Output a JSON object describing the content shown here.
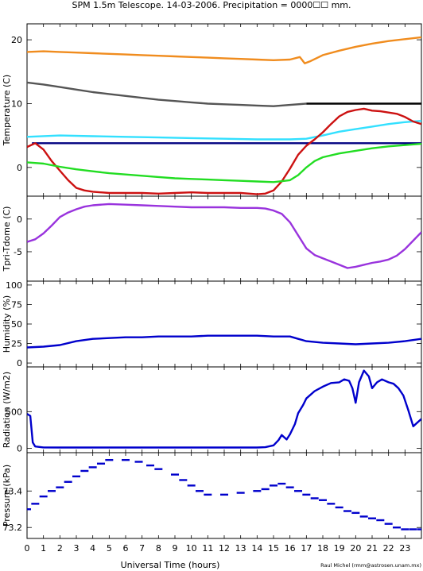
{
  "title": "SPM 1.5m Telescope. 14-03-2006. Precipitation = 0000☐☐ mm.",
  "credit": "Raul Michel (rmm@astrosen.unam.mx)",
  "xaxis": {
    "label": "Universal Time (hours)",
    "range": [
      0,
      24
    ],
    "ticks": [
      "0",
      "1",
      "2",
      "3",
      "4",
      "5",
      "6",
      "7",
      "8",
      "9",
      "10",
      "11",
      "12",
      "13",
      "14",
      "15",
      "16",
      "17",
      "18",
      "19",
      "20",
      "21",
      "22",
      "23"
    ]
  },
  "colors": {
    "orange": "#f08c1e",
    "gray": "#555555",
    "cyan": "#33e0ff",
    "navy": "#000080",
    "black": "#000000",
    "red": "#cc1111",
    "green": "#22dd22",
    "purple": "#9933dd",
    "blue": "#0000cc"
  },
  "chart_data": [
    {
      "type": "line",
      "ylabel": "Temperature (C)",
      "ylim": [
        -4.5,
        22.5
      ],
      "yticks": [
        "20",
        "10",
        "0"
      ],
      "series": [
        {
          "color_key": "orange",
          "x": [
            0,
            1,
            2,
            3,
            4,
            5,
            6,
            7,
            8,
            9,
            10,
            11,
            12,
            13,
            14,
            15,
            16,
            16.6,
            16.9,
            17.2,
            18,
            19,
            20,
            21,
            22,
            23,
            24
          ],
          "y": [
            18.1,
            18.2,
            18.1,
            18.0,
            17.9,
            17.8,
            17.7,
            17.6,
            17.5,
            17.4,
            17.3,
            17.2,
            17.1,
            17.0,
            16.9,
            16.8,
            16.9,
            17.3,
            16.3,
            16.6,
            17.6,
            18.3,
            18.9,
            19.4,
            19.8,
            20.1,
            20.4
          ]
        },
        {
          "color_key": "gray",
          "x": [
            0,
            1,
            2,
            3,
            4,
            5,
            6,
            7,
            8,
            9,
            10,
            11,
            12,
            13,
            14,
            15,
            16,
            17
          ],
          "y": [
            13.3,
            13.0,
            12.6,
            12.2,
            11.8,
            11.5,
            11.2,
            10.9,
            10.6,
            10.4,
            10.2,
            10.0,
            9.9,
            9.8,
            9.7,
            9.6,
            9.8,
            10.0
          ]
        },
        {
          "color_key": "black",
          "x": [
            17,
            24
          ],
          "y": [
            10.0,
            10.0
          ]
        },
        {
          "color_key": "cyan",
          "x": [
            0,
            2,
            4,
            6,
            8,
            10,
            12,
            14,
            16,
            17,
            18,
            19,
            20,
            21,
            22,
            23,
            24
          ],
          "y": [
            4.8,
            5.0,
            4.9,
            4.8,
            4.7,
            4.6,
            4.5,
            4.4,
            4.4,
            4.5,
            5.0,
            5.6,
            6.0,
            6.4,
            6.8,
            7.1,
            7.3
          ]
        },
        {
          "color_key": "navy",
          "x": [
            0.3,
            24
          ],
          "y": [
            3.8,
            3.8
          ]
        },
        {
          "color_key": "red",
          "x": [
            0,
            0.5,
            1,
            1.5,
            2,
            2.5,
            3,
            3.5,
            4,
            5,
            6,
            7,
            8,
            9,
            10,
            11,
            12,
            13,
            14,
            14.5,
            15,
            15.5,
            16,
            16.5,
            17,
            17.5,
            18,
            18.5,
            19,
            19.5,
            20,
            20.5,
            21,
            21.5,
            22,
            22.5,
            23,
            23.5,
            24
          ],
          "y": [
            3.2,
            3.8,
            2.8,
            1.0,
            -0.5,
            -2.0,
            -3.2,
            -3.6,
            -3.8,
            -4.0,
            -4.0,
            -4.0,
            -4.1,
            -4.0,
            -3.9,
            -4.0,
            -4.0,
            -4.0,
            -4.2,
            -4.1,
            -3.6,
            -2.2,
            -0.2,
            2.0,
            3.4,
            4.4,
            5.5,
            6.8,
            8.0,
            8.7,
            9.0,
            9.2,
            8.9,
            8.8,
            8.6,
            8.4,
            7.9,
            7.2,
            6.8
          ]
        },
        {
          "color_key": "green",
          "x": [
            0,
            1,
            2,
            3,
            4,
            5,
            6,
            7,
            8,
            9,
            10,
            11,
            12,
            13,
            14,
            15,
            16,
            16.5,
            17,
            17.5,
            18,
            19,
            20,
            21,
            22,
            23,
            24
          ],
          "y": [
            0.8,
            0.6,
            0.1,
            -0.3,
            -0.6,
            -0.9,
            -1.1,
            -1.3,
            -1.5,
            -1.7,
            -1.8,
            -1.9,
            -2.0,
            -2.1,
            -2.2,
            -2.3,
            -2.0,
            -1.2,
            0.0,
            1.0,
            1.6,
            2.2,
            2.6,
            3.0,
            3.3,
            3.5,
            3.7
          ]
        }
      ]
    },
    {
      "type": "line",
      "ylabel": "Tpri-Tdome (C)",
      "ylim": [
        -9.5,
        3.5
      ],
      "yticks": [
        "0",
        "-5"
      ],
      "series": [
        {
          "color_key": "purple",
          "x": [
            0,
            0.5,
            1,
            1.5,
            2,
            2.5,
            3,
            3.5,
            4,
            5,
            6,
            7,
            8,
            9,
            10,
            11,
            12,
            13,
            14,
            14.5,
            15,
            15.5,
            16,
            16.5,
            17,
            17.5,
            18,
            18.5,
            19,
            19.5,
            20,
            20.5,
            21,
            21.5,
            22,
            22.5,
            23,
            23.5,
            24
          ],
          "y": [
            -3.5,
            -3.1,
            -2.2,
            -1.0,
            0.3,
            1.0,
            1.5,
            1.9,
            2.1,
            2.3,
            2.2,
            2.1,
            2.0,
            1.9,
            1.8,
            1.8,
            1.8,
            1.7,
            1.7,
            1.6,
            1.3,
            0.8,
            -0.5,
            -2.5,
            -4.5,
            -5.5,
            -6.0,
            -6.5,
            -7.0,
            -7.5,
            -7.3,
            -7.0,
            -6.7,
            -6.5,
            -6.2,
            -5.6,
            -4.6,
            -3.3,
            -2.0
          ]
        }
      ]
    },
    {
      "type": "line",
      "ylabel": "Humidity (%)",
      "ylim": [
        -5,
        105
      ],
      "yticks": [
        "100",
        "75",
        "50",
        "25",
        "0"
      ],
      "series": [
        {
          "color_key": "blue",
          "x": [
            0,
            1,
            2,
            3,
            4,
            5,
            6,
            7,
            8,
            9,
            10,
            11,
            12,
            13,
            14,
            15,
            16,
            16.5,
            17,
            18,
            19,
            20,
            21,
            22,
            23,
            24
          ],
          "y": [
            20,
            21,
            23,
            28,
            31,
            32,
            33,
            33,
            34,
            34,
            34,
            35,
            35,
            35,
            35,
            34,
            34,
            31,
            28,
            26,
            25,
            24,
            25,
            26,
            28,
            31
          ]
        }
      ]
    },
    {
      "type": "line",
      "ylabel": "Radiation (W/m2)",
      "ylim": [
        -60,
        1110
      ],
      "yticks": [
        "500",
        "0"
      ],
      "series": [
        {
          "color_key": "blue",
          "x": [
            0,
            0.2,
            0.35,
            0.5,
            1,
            2,
            3,
            4,
            5,
            6,
            7,
            8,
            9,
            10,
            11,
            12,
            13,
            14,
            14.5,
            15,
            15.3,
            15.5,
            15.8,
            16,
            16.3,
            16.5,
            16.8,
            17,
            17.5,
            18,
            18.5,
            19,
            19.3,
            19.6,
            19.8,
            20,
            20.2,
            20.5,
            20.8,
            21,
            21.3,
            21.6,
            22,
            22.3,
            22.6,
            22.9,
            23.2,
            23.5,
            24
          ],
          "y": [
            470,
            440,
            80,
            25,
            12,
            10,
            10,
            10,
            10,
            10,
            10,
            10,
            10,
            10,
            10,
            10,
            10,
            10,
            15,
            40,
            110,
            180,
            120,
            190,
            330,
            480,
            590,
            680,
            780,
            840,
            890,
            900,
            940,
            920,
            820,
            620,
            900,
            1060,
            980,
            820,
            900,
            940,
            900,
            880,
            820,
            720,
            520,
            300,
            400
          ]
        }
      ]
    },
    {
      "type": "scatter",
      "ylabel": "Pressure (kPa)",
      "ylim": [
        73.14,
        73.61
      ],
      "yticks": [
        "73.4",
        "73.2"
      ],
      "series": [
        {
          "color_key": "blue",
          "x": [
            0,
            0.5,
            1,
            1.5,
            2,
            2.5,
            3,
            3.5,
            4,
            4.5,
            5,
            6,
            6.8,
            7.5,
            8,
            9,
            9.5,
            10,
            10.5,
            11,
            12,
            13,
            14,
            14.5,
            15,
            15.5,
            16,
            16.5,
            17,
            17.5,
            18,
            18.5,
            19,
            19.5,
            20,
            20.5,
            21,
            21.5,
            22,
            22.5,
            23,
            23.5,
            24
          ],
          "y": [
            73.3,
            73.33,
            73.37,
            73.4,
            73.42,
            73.45,
            73.48,
            73.51,
            73.53,
            73.55,
            73.57,
            73.57,
            73.56,
            73.54,
            73.52,
            73.49,
            73.46,
            73.43,
            73.4,
            73.38,
            73.38,
            73.39,
            73.4,
            73.41,
            73.43,
            73.44,
            73.42,
            73.4,
            73.38,
            73.36,
            73.35,
            73.33,
            73.31,
            73.29,
            73.28,
            73.26,
            73.25,
            73.24,
            73.22,
            73.2,
            73.19,
            73.19,
            73.19
          ]
        }
      ]
    }
  ]
}
